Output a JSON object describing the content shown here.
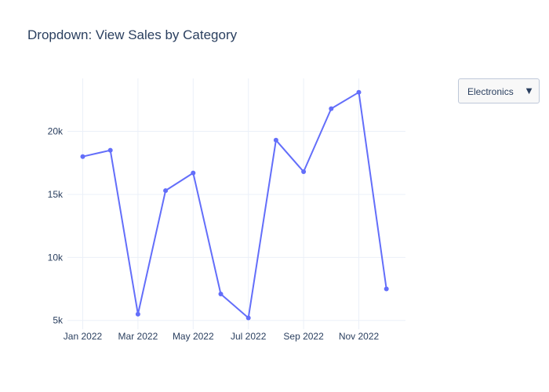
{
  "chart_data": {
    "type": "line",
    "title": "Dropdown: View Sales by Category",
    "xlabel": "",
    "ylabel": "",
    "x": [
      "2022-01",
      "2022-02",
      "2022-03",
      "2022-04",
      "2022-05",
      "2022-06",
      "2022-07",
      "2022-08",
      "2022-09",
      "2022-10",
      "2022-11",
      "2022-12"
    ],
    "x_ticks": [
      "Jan 2022",
      "Mar 2022",
      "May 2022",
      "Jul 2022",
      "Sep 2022",
      "Nov 2022"
    ],
    "y_ticks": [
      5000,
      10000,
      15000,
      20000
    ],
    "y_tick_labels": [
      "5k",
      "10k",
      "15k",
      "20k"
    ],
    "ylim": [
      4300,
      24200
    ],
    "series": [
      {
        "name": "Electronics",
        "color": "#636efa",
        "values": [
          18000,
          18500,
          5500,
          15300,
          16700,
          7100,
          5200,
          19300,
          16800,
          21800,
          23100,
          7500
        ]
      }
    ],
    "grid": true
  },
  "dropdown": {
    "selected": "Electronics",
    "arrow_icon": "▼"
  }
}
